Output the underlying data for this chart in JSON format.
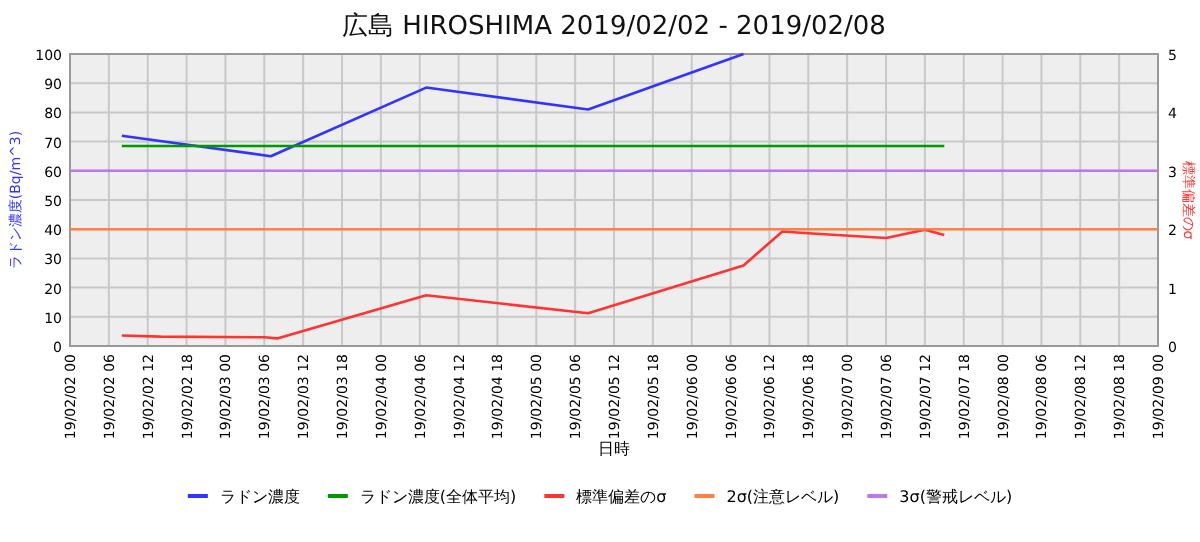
{
  "chart_data": {
    "type": "line",
    "title": "広島 HIROSHIMA 2019/02/02 - 2019/02/08",
    "xlabel": "日時",
    "ylabel": "ラドン濃度(Bq/m^3)",
    "y2label": "標準偏差のσ",
    "series": [
      {
        "name": "ラドン濃度",
        "color": "#3333ff",
        "x": [
          "2019-02-02T08:00",
          "2019-02-03T07:00",
          "2019-02-04T07:00",
          "2019-02-05T08:00",
          "2019-02-06T08:00"
        ],
        "values": [
          72,
          65,
          88.5,
          81,
          100
        ]
      },
      {
        "name": "ラドン濃度(全体平均)",
        "color": "#009900",
        "x": [
          "2019-02-02T08:00",
          "2019-02-07T15:00"
        ],
        "values": [
          68.5,
          68.5
        ]
      },
      {
        "name": "標準偏差のσ",
        "color": "#ff3333",
        "axis": "y2",
        "x": [
          "2019-02-02T08:00",
          "2019-02-02T14:00",
          "2019-02-03T06:00",
          "2019-02-03T08:00",
          "2019-02-04T07:00",
          "2019-02-05T08:00",
          "2019-02-06T08:00",
          "2019-02-06T14:00",
          "2019-02-06T18:00",
          "2019-02-07T06:00",
          "2019-02-07T12:00",
          "2019-02-07T15:00"
        ],
        "values": [
          0.18,
          0.16,
          0.15,
          0.13,
          0.87,
          0.56,
          1.38,
          1.96,
          1.93,
          1.85,
          1.99,
          1.9
        ]
      },
      {
        "name": "2σ(注意レベル)",
        "color": "#ff8040",
        "x": [
          "2019-02-02T00:00",
          "2019-02-09T00:00"
        ],
        "values": [
          40,
          40
        ]
      },
      {
        "name": "3σ(警戒レベル)",
        "color": "#bb77ee",
        "x": [
          "2019-02-02T00:00",
          "2019-02-09T00:00"
        ],
        "values": [
          60,
          60
        ]
      }
    ],
    "xlim": [
      "2019-02-02T00:00",
      "2019-02-09T00:00"
    ],
    "xticks": [
      {
        "value": "2019-02-02T00:00",
        "label": "19/02/02 00"
      },
      {
        "value": "2019-02-02T06:00",
        "label": "19/02/02 06"
      },
      {
        "value": "2019-02-02T12:00",
        "label": "19/02/02 12"
      },
      {
        "value": "2019-02-02T18:00",
        "label": "19/02/02 18"
      },
      {
        "value": "2019-02-03T00:00",
        "label": "19/02/03 00"
      },
      {
        "value": "2019-02-03T06:00",
        "label": "19/02/03 06"
      },
      {
        "value": "2019-02-03T12:00",
        "label": "19/02/03 12"
      },
      {
        "value": "2019-02-03T18:00",
        "label": "19/02/03 18"
      },
      {
        "value": "2019-02-04T00:00",
        "label": "19/02/04 00"
      },
      {
        "value": "2019-02-04T06:00",
        "label": "19/02/04 06"
      },
      {
        "value": "2019-02-04T12:00",
        "label": "19/02/04 12"
      },
      {
        "value": "2019-02-04T18:00",
        "label": "19/02/04 18"
      },
      {
        "value": "2019-02-05T00:00",
        "label": "19/02/05 00"
      },
      {
        "value": "2019-02-05T06:00",
        "label": "19/02/05 06"
      },
      {
        "value": "2019-02-05T12:00",
        "label": "19/02/05 12"
      },
      {
        "value": "2019-02-05T18:00",
        "label": "19/02/05 18"
      },
      {
        "value": "2019-02-06T00:00",
        "label": "19/02/06 00"
      },
      {
        "value": "2019-02-06T06:00",
        "label": "19/02/06 06"
      },
      {
        "value": "2019-02-06T12:00",
        "label": "19/02/06 12"
      },
      {
        "value": "2019-02-06T18:00",
        "label": "19/02/06 18"
      },
      {
        "value": "2019-02-07T00:00",
        "label": "19/02/07 00"
      },
      {
        "value": "2019-02-07T06:00",
        "label": "19/02/07 06"
      },
      {
        "value": "2019-02-07T12:00",
        "label": "19/02/07 12"
      },
      {
        "value": "2019-02-07T18:00",
        "label": "19/02/07 18"
      },
      {
        "value": "2019-02-08T00:00",
        "label": "19/02/08 00"
      },
      {
        "value": "2019-02-08T06:00",
        "label": "19/02/08 06"
      },
      {
        "value": "2019-02-08T12:00",
        "label": "19/02/08 12"
      },
      {
        "value": "2019-02-08T18:00",
        "label": "19/02/08 18"
      },
      {
        "value": "2019-02-09T00:00",
        "label": "19/02/09 00"
      }
    ],
    "ylim": [
      0,
      100
    ],
    "yticks": [
      0,
      10,
      20,
      30,
      40,
      50,
      60,
      70,
      80,
      90,
      100
    ],
    "y2lim": [
      0,
      5
    ],
    "y2ticks": [
      0,
      1,
      2,
      3,
      4,
      5
    ],
    "grid": true,
    "legend": "bottom",
    "marker": "none",
    "line_style": "solid"
  }
}
